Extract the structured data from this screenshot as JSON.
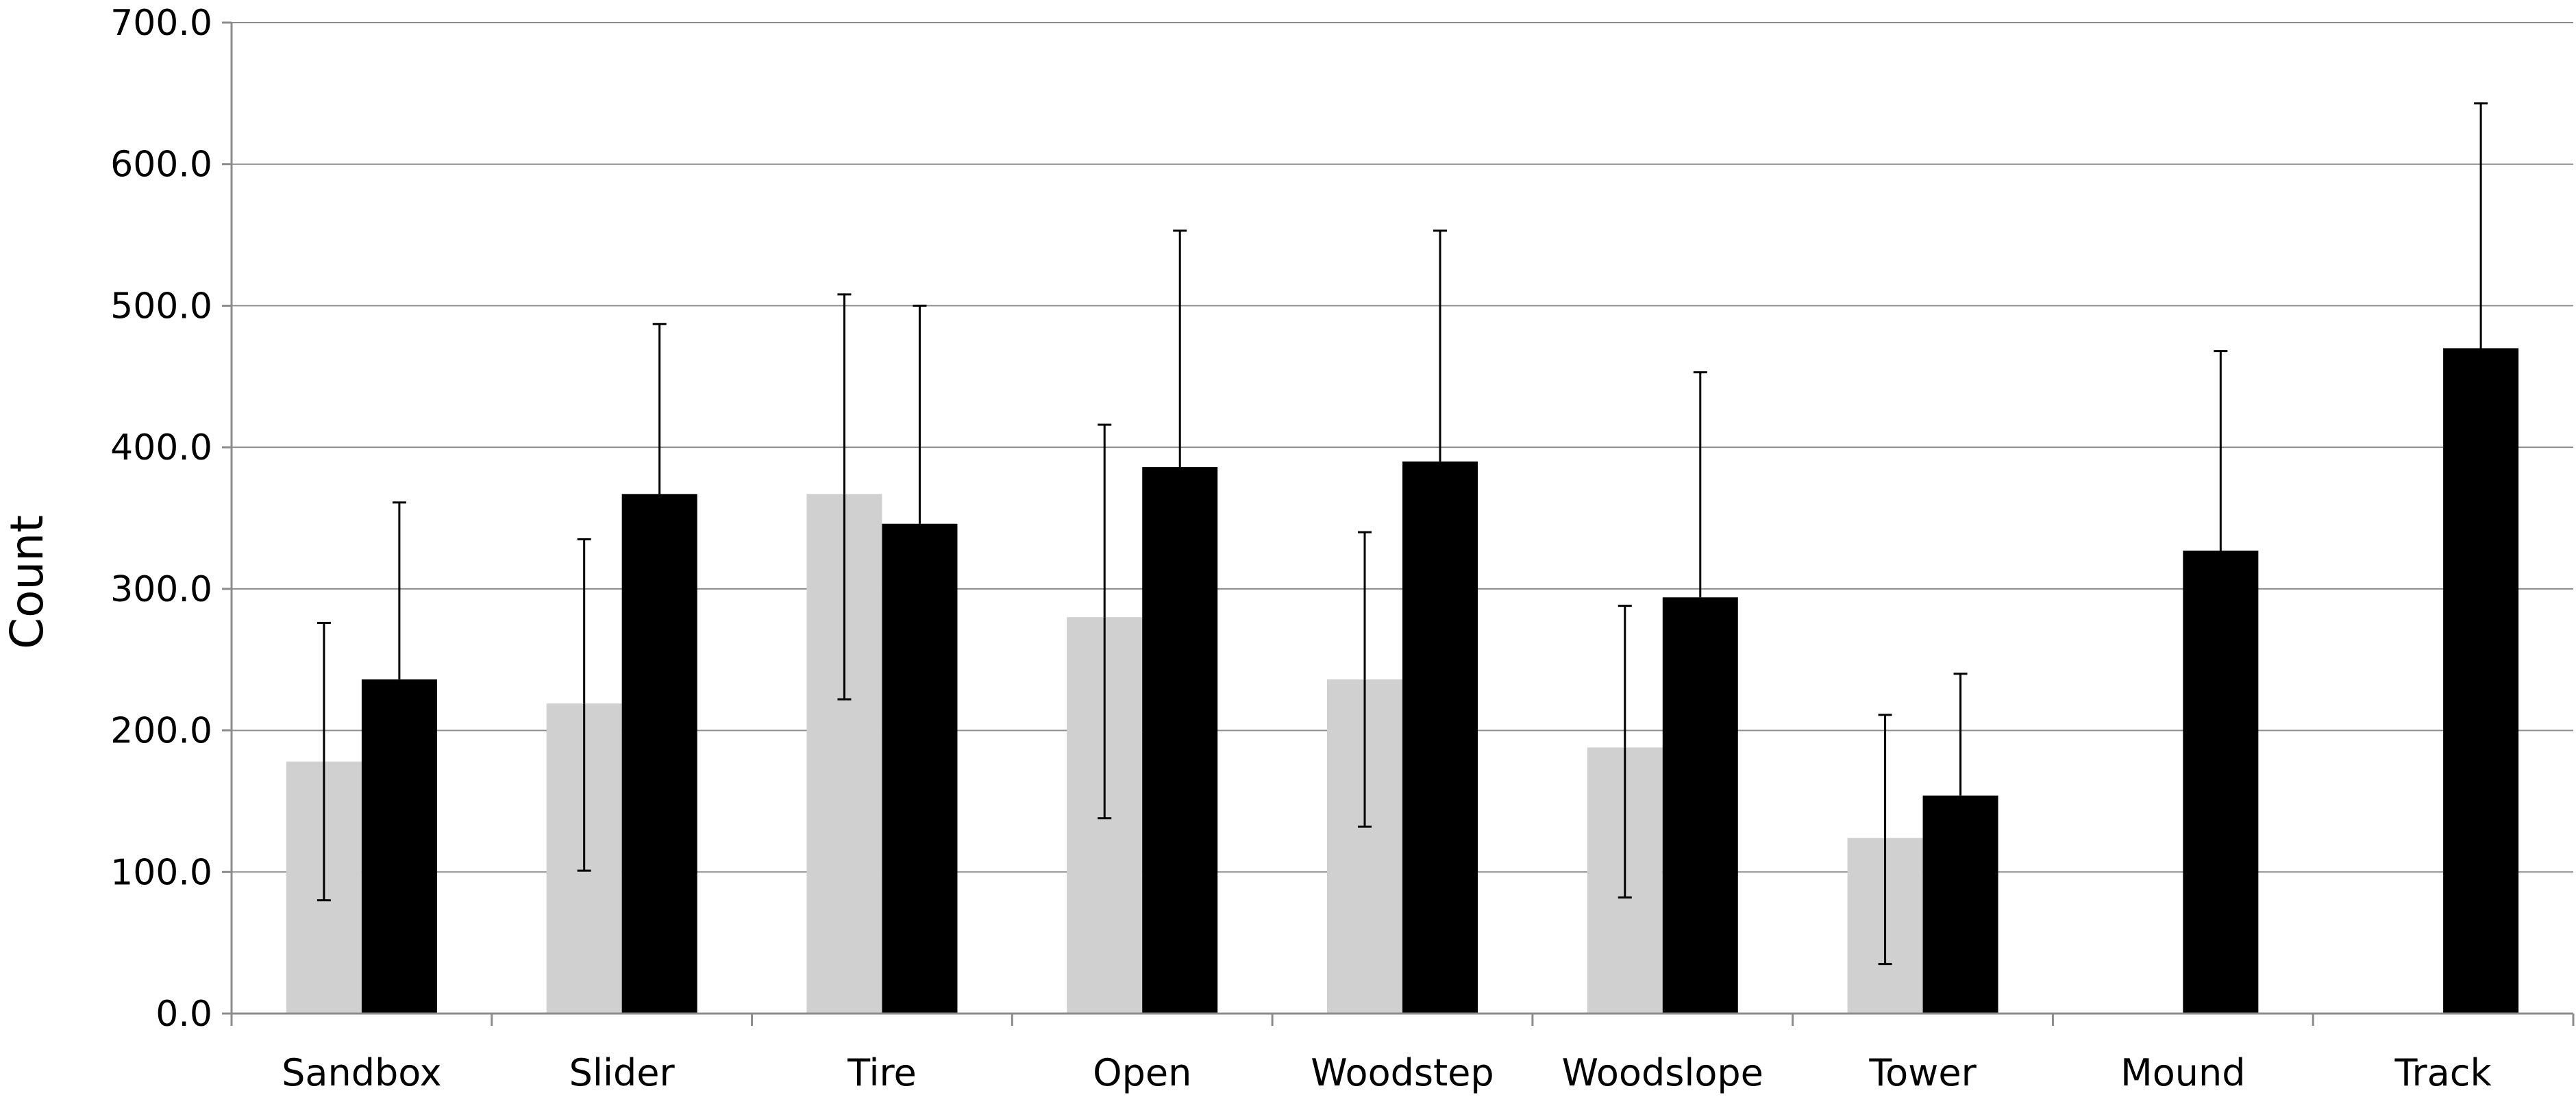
{
  "chart_data": {
    "type": "bar",
    "title": "",
    "xlabel": "",
    "ylabel": "Count",
    "ylim": [
      0,
      700
    ],
    "yticks": [
      "0.0",
      "100.0",
      "200.0",
      "300.0",
      "400.0",
      "500.0",
      "600.0",
      "700.0"
    ],
    "grid": true,
    "legend": "none",
    "categories": [
      "Sandbox",
      "Slider",
      "Tire",
      "Open",
      "Woodstep",
      "Woodslope",
      "Tower",
      "Mound",
      "Track"
    ],
    "series": [
      {
        "color": "#d0d0d0",
        "values": [
          178,
          219,
          367,
          280,
          236,
          188,
          124,
          null,
          null
        ],
        "error_upper": [
          276,
          335,
          508,
          416,
          340,
          288,
          211,
          null,
          null
        ],
        "error_lower": [
          80,
          101,
          222,
          138,
          132,
          82,
          35,
          null,
          null
        ]
      },
      {
        "color": "#000000",
        "values": [
          236,
          367,
          346,
          386,
          390,
          294,
          154,
          327,
          470
        ],
        "error_upper": [
          361,
          487,
          500,
          553,
          553,
          453,
          240,
          468,
          643
        ],
        "error_lower": [
          null,
          null,
          null,
          null,
          null,
          null,
          null,
          null,
          null
        ]
      }
    ]
  }
}
